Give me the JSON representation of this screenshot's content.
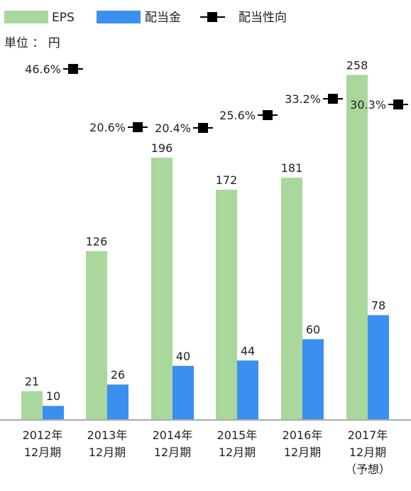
{
  "chart_data": {
    "type": "bar",
    "unit_label": "単位 ： 円",
    "categories": [
      [
        "2012年",
        "12月期"
      ],
      [
        "2013年",
        "12月期"
      ],
      [
        "2014年",
        "12月期"
      ],
      [
        "2015年",
        "12月期"
      ],
      [
        "2016年",
        "12月期"
      ],
      [
        "2017年",
        "12月期",
        "（予想）"
      ]
    ],
    "series": [
      {
        "name": "EPS",
        "color": "#a9d79c",
        "values": [
          21,
          126,
          196,
          172,
          181,
          258
        ],
        "labels": [
          "21",
          "126",
          "196",
          "172",
          "181",
          "258"
        ]
      },
      {
        "name": "配当金",
        "color": "#3b8ff0",
        "values": [
          10,
          26,
          40,
          44,
          60,
          78
        ],
        "labels": [
          "10",
          "26",
          "40",
          "44",
          "60",
          "78"
        ]
      }
    ],
    "payout_ratio": {
      "name": "配当性向",
      "color": "#000000",
      "values": [
        46.6,
        20.6,
        20.4,
        25.6,
        33.2,
        30.3
      ],
      "labels": [
        "46.6%",
        "20.6%",
        "20.4%",
        "25.6%",
        "33.2%",
        "30.3%"
      ]
    },
    "legend_position": "top-left",
    "grid": false
  }
}
